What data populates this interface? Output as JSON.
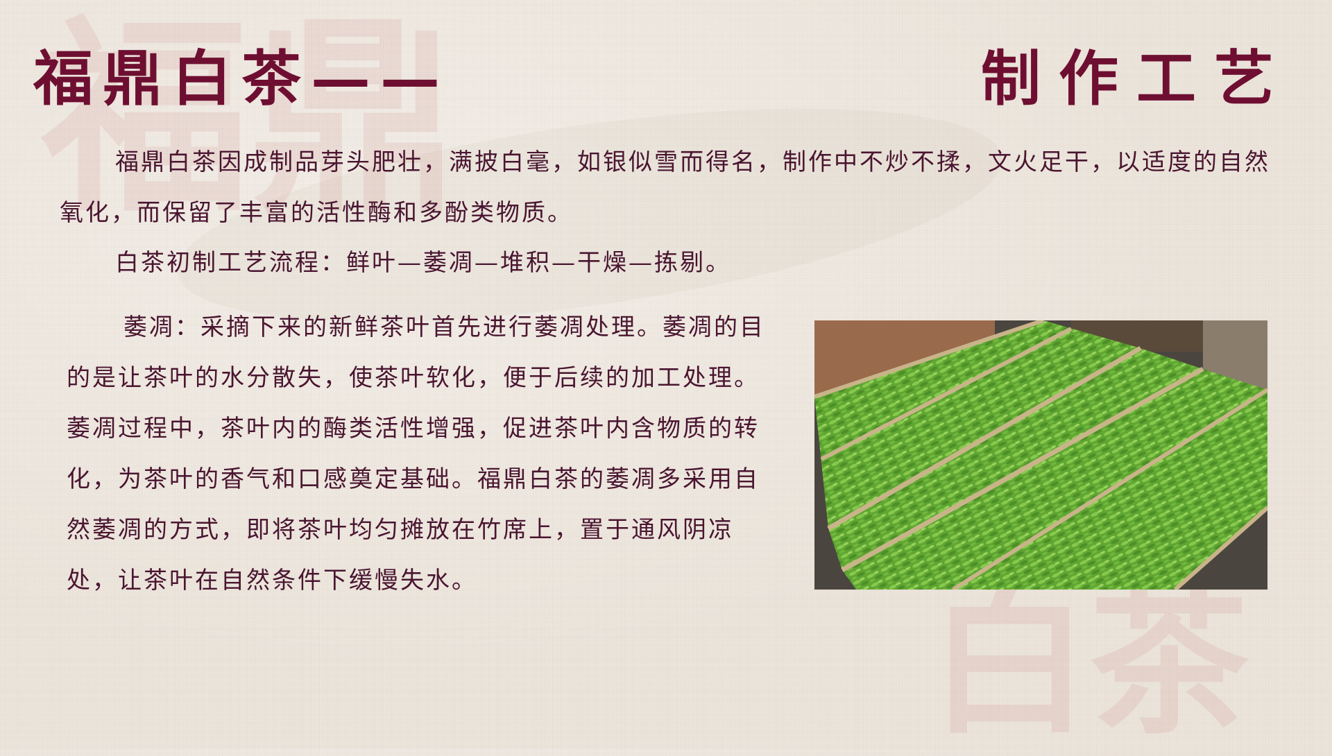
{
  "title_left": "福鼎白茶——",
  "title_right": "制作工艺",
  "intro_paragraph": "福鼎白茶因成制品芽头肥壮，满披白毫，如银似雪而得名，制作中不炒不揉，文火足干，以适度的自然氧化，而保留了丰富的活性酶和多酚类物质。",
  "process_paragraph": "白茶初制工艺流程：鲜叶—萎凋—堆积—干燥—拣剔。",
  "withering_paragraph": "萎凋：采摘下来的新鲜茶叶首先进行萎凋处理。萎凋的目的是让茶叶的水分散失，使茶叶软化，便于后续的加工处理。萎凋过程中，茶叶内的酶类活性增强，促进茶叶内含物质的转化，为茶叶的香气和口感奠定基础。福鼎白茶的萎凋多采用自然萎凋的方式，即将茶叶均匀摊放在竹席上，置于通风阴凉处，让茶叶在自然条件下缓慢失水。",
  "watermark_left": "福鼎",
  "watermark_right": "白茶",
  "colors": {
    "title": "#6e0f32",
    "body_text": "#4a1530",
    "background": "#ece5dc",
    "tea_leaf": "#6fb23a"
  }
}
